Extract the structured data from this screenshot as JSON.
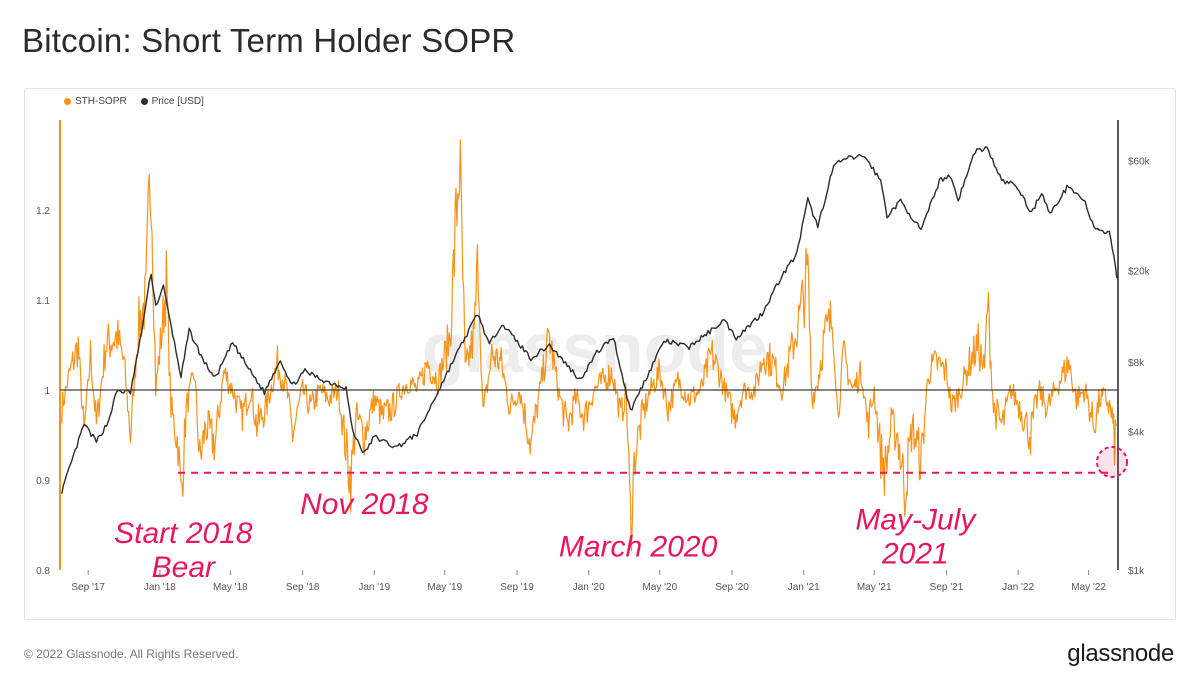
{
  "title": "Bitcoin: Short Term Holder SOPR",
  "footer": "© 2022 Glassnode. All Rights Reserved.",
  "brand": "glassnode",
  "watermark": "glassnode",
  "colors": {
    "sopr": "#f7931a",
    "price": "#2b2b2b",
    "annotation": "#e8175d",
    "baseline": "#3c3c3c"
  },
  "chart_data": {
    "type": "line",
    "title": "Bitcoin: Short Term Holder SOPR",
    "legend": {
      "position": "top-left",
      "entries": [
        "STH-SOPR",
        "Price [USD]"
      ]
    },
    "x_tick_labels": [
      "Sep '17",
      "Jan '18",
      "May '18",
      "Sep '18",
      "Jan '19",
      "May '19",
      "Sep '19",
      "Jan '20",
      "May '20",
      "Sep '20",
      "Jan '21",
      "May '21",
      "Sep '21",
      "Jan '22",
      "May '22"
    ],
    "x_tick_dates": [
      "2017-09-01",
      "2018-01-01",
      "2018-05-01",
      "2018-09-01",
      "2019-01-01",
      "2019-05-01",
      "2019-09-01",
      "2020-01-01",
      "2020-05-01",
      "2020-09-01",
      "2021-01-01",
      "2021-05-01",
      "2021-09-01",
      "2022-01-01",
      "2022-05-01"
    ],
    "x_range": [
      "2017-07-15",
      "2022-06-20"
    ],
    "y_left": {
      "range": [
        0.8,
        1.3
      ],
      "ticks": [
        0.8,
        0.9,
        1,
        1.1,
        1.2
      ],
      "tick_labels": [
        "0.8",
        "0.9",
        "1",
        "1.1",
        "1.2"
      ]
    },
    "y_right": {
      "scale": "log",
      "range": [
        1000,
        90000
      ],
      "ticks": [
        1000,
        4000,
        8000,
        20000,
        60000
      ],
      "tick_labels": [
        "$1k",
        "$4k",
        "$8k",
        "$20k",
        "$60k"
      ]
    },
    "baseline": 1,
    "series": [
      {
        "name": "STH-SOPR",
        "axis": "left",
        "points": [
          [
            "2017-07-18",
            0.98
          ],
          [
            "2017-08-01",
            1.02
          ],
          [
            "2017-08-15",
            1.05
          ],
          [
            "2017-08-25",
            0.95
          ],
          [
            "2017-09-05",
            1.04
          ],
          [
            "2017-09-15",
            0.96
          ],
          [
            "2017-10-01",
            1.05
          ],
          [
            "2017-10-20",
            1.06
          ],
          [
            "2017-11-01",
            1.03
          ],
          [
            "2017-11-12",
            0.95
          ],
          [
            "2017-11-25",
            1.07
          ],
          [
            "2017-12-08",
            1.1
          ],
          [
            "2017-12-17",
            1.26
          ],
          [
            "2017-12-25",
            1.0
          ],
          [
            "2018-01-05",
            1.07
          ],
          [
            "2018-01-12",
            1.12
          ],
          [
            "2018-01-20",
            0.98
          ],
          [
            "2018-02-01",
            0.94
          ],
          [
            "2018-02-06",
            0.88
          ],
          [
            "2018-02-15",
            0.98
          ],
          [
            "2018-03-01",
            1.02
          ],
          [
            "2018-03-10",
            0.92
          ],
          [
            "2018-03-20",
            0.96
          ],
          [
            "2018-04-05",
            0.94
          ],
          [
            "2018-04-20",
            1.02
          ],
          [
            "2018-05-05",
            1.0
          ],
          [
            "2018-05-20",
            0.97
          ],
          [
            "2018-06-05",
            1.0
          ],
          [
            "2018-06-15",
            0.96
          ],
          [
            "2018-07-01",
            0.98
          ],
          [
            "2018-07-20",
            1.03
          ],
          [
            "2018-08-05",
            1.0
          ],
          [
            "2018-08-15",
            0.95
          ],
          [
            "2018-09-01",
            1.0
          ],
          [
            "2018-09-15",
            0.98
          ],
          [
            "2018-10-01",
            1.0
          ],
          [
            "2018-10-15",
            0.99
          ],
          [
            "2018-11-01",
            1.0
          ],
          [
            "2018-11-15",
            0.93
          ],
          [
            "2018-11-22",
            0.9
          ],
          [
            "2018-12-01",
            0.97
          ],
          [
            "2018-12-15",
            0.95
          ],
          [
            "2019-01-01",
            0.99
          ],
          [
            "2019-01-15",
            0.97
          ],
          [
            "2019-02-01",
            0.98
          ],
          [
            "2019-02-15",
            1.0
          ],
          [
            "2019-03-01",
            1.01
          ],
          [
            "2019-03-15",
            1.0
          ],
          [
            "2019-04-02",
            1.03
          ],
          [
            "2019-04-20",
            1.01
          ],
          [
            "2019-05-10",
            1.06
          ],
          [
            "2019-05-26",
            1.26
          ],
          [
            "2019-06-05",
            1.02
          ],
          [
            "2019-06-20",
            1.06
          ],
          [
            "2019-06-27",
            1.15
          ],
          [
            "2019-07-05",
            0.97
          ],
          [
            "2019-07-20",
            1.04
          ],
          [
            "2019-08-05",
            1.03
          ],
          [
            "2019-08-20",
            0.98
          ],
          [
            "2019-09-05",
            1.0
          ],
          [
            "2019-09-25",
            0.94
          ],
          [
            "2019-10-10",
            1.0
          ],
          [
            "2019-10-26",
            1.06
          ],
          [
            "2019-11-10",
            1.0
          ],
          [
            "2019-11-25",
            0.96
          ],
          [
            "2019-12-10",
            0.99
          ],
          [
            "2019-12-25",
            0.97
          ],
          [
            "2020-01-10",
            1.0
          ],
          [
            "2020-01-25",
            1.01
          ],
          [
            "2020-02-10",
            1.02
          ],
          [
            "2020-02-25",
            0.97
          ],
          [
            "2020-03-05",
            1.0
          ],
          [
            "2020-03-12",
            0.85
          ],
          [
            "2020-03-20",
            0.93
          ],
          [
            "2020-04-01",
            0.97
          ],
          [
            "2020-04-15",
            1.0
          ],
          [
            "2020-05-01",
            1.02
          ],
          [
            "2020-05-15",
            0.98
          ],
          [
            "2020-06-01",
            1.01
          ],
          [
            "2020-06-20",
            0.99
          ],
          [
            "2020-07-10",
            1.0
          ],
          [
            "2020-07-28",
            1.04
          ],
          [
            "2020-08-10",
            1.02
          ],
          [
            "2020-08-25",
            0.99
          ],
          [
            "2020-09-05",
            0.97
          ],
          [
            "2020-09-20",
            1.0
          ],
          [
            "2020-10-10",
            1.0
          ],
          [
            "2020-10-25",
            1.04
          ],
          [
            "2020-11-10",
            1.03
          ],
          [
            "2020-11-25",
            1.0
          ],
          [
            "2020-12-10",
            1.04
          ],
          [
            "2020-12-25",
            1.08
          ],
          [
            "2021-01-08",
            1.13
          ],
          [
            "2021-01-15",
            0.99
          ],
          [
            "2021-01-25",
            1.01
          ],
          [
            "2021-02-05",
            1.06
          ],
          [
            "2021-02-20",
            1.08
          ],
          [
            "2021-02-28",
            0.97
          ],
          [
            "2021-03-10",
            1.04
          ],
          [
            "2021-03-25",
            1.0
          ],
          [
            "2021-04-10",
            1.02
          ],
          [
            "2021-04-20",
            0.96
          ],
          [
            "2021-05-01",
            1.0
          ],
          [
            "2021-05-12",
            0.93
          ],
          [
            "2021-05-20",
            0.91
          ],
          [
            "2021-05-30",
            0.96
          ],
          [
            "2021-06-10",
            0.95
          ],
          [
            "2021-06-22",
            0.89
          ],
          [
            "2021-07-05",
            0.96
          ],
          [
            "2021-07-20",
            0.92
          ],
          [
            "2021-08-01",
            1.02
          ],
          [
            "2021-08-15",
            1.03
          ],
          [
            "2021-09-01",
            1.02
          ],
          [
            "2021-09-10",
            0.98
          ],
          [
            "2021-09-25",
            1.0
          ],
          [
            "2021-10-10",
            1.03
          ],
          [
            "2021-10-25",
            1.05
          ],
          [
            "2021-11-05",
            1.02
          ],
          [
            "2021-11-10",
            1.1
          ],
          [
            "2021-11-20",
            0.98
          ],
          [
            "2021-12-05",
            0.96
          ],
          [
            "2021-12-20",
            1.0
          ],
          [
            "2022-01-05",
            0.98
          ],
          [
            "2022-01-22",
            0.95
          ],
          [
            "2022-02-05",
            1.0
          ],
          [
            "2022-02-20",
            0.98
          ],
          [
            "2022-03-05",
            1.0
          ],
          [
            "2022-03-28",
            1.03
          ],
          [
            "2022-04-10",
            0.99
          ],
          [
            "2022-04-25",
            1.0
          ],
          [
            "2022-05-10",
            0.96
          ],
          [
            "2022-05-20",
            0.99
          ],
          [
            "2022-06-01",
            0.99
          ],
          [
            "2022-06-10",
            0.97
          ],
          [
            "2022-06-14",
            0.94
          ],
          [
            "2022-06-17",
            0.96
          ]
        ]
      },
      {
        "name": "Price [USD]",
        "axis": "right",
        "points": [
          [
            "2017-07-18",
            2200
          ],
          [
            "2017-08-01",
            2800
          ],
          [
            "2017-08-25",
            4300
          ],
          [
            "2017-09-15",
            3600
          ],
          [
            "2017-10-05",
            4400
          ],
          [
            "2017-10-20",
            6000
          ],
          [
            "2017-11-12",
            5900
          ],
          [
            "2017-11-28",
            9800
          ],
          [
            "2017-12-17",
            19500
          ],
          [
            "2017-12-25",
            14000
          ],
          [
            "2018-01-07",
            17000
          ],
          [
            "2018-01-20",
            11500
          ],
          [
            "2018-02-06",
            6900
          ],
          [
            "2018-02-20",
            11000
          ],
          [
            "2018-03-15",
            8200
          ],
          [
            "2018-04-05",
            6800
          ],
          [
            "2018-05-05",
            9700
          ],
          [
            "2018-06-01",
            7500
          ],
          [
            "2018-06-28",
            5900
          ],
          [
            "2018-07-25",
            8200
          ],
          [
            "2018-08-14",
            6300
          ],
          [
            "2018-09-05",
            7300
          ],
          [
            "2018-10-10",
            6600
          ],
          [
            "2018-11-14",
            6200
          ],
          [
            "2018-11-25",
            4000
          ],
          [
            "2018-12-15",
            3200
          ],
          [
            "2019-01-01",
            3800
          ],
          [
            "2019-02-07",
            3400
          ],
          [
            "2019-03-15",
            3900
          ],
          [
            "2019-04-05",
            5000
          ],
          [
            "2019-05-14",
            8000
          ],
          [
            "2019-06-26",
            13000
          ],
          [
            "2019-07-16",
            9500
          ],
          [
            "2019-08-06",
            11800
          ],
          [
            "2019-09-25",
            8300
          ],
          [
            "2019-10-26",
            9500
          ],
          [
            "2019-12-17",
            6700
          ],
          [
            "2020-01-15",
            8800
          ],
          [
            "2020-02-12",
            10300
          ],
          [
            "2020-03-12",
            4900
          ],
          [
            "2020-04-10",
            7000
          ],
          [
            "2020-05-08",
            9900
          ],
          [
            "2020-06-20",
            9300
          ],
          [
            "2020-07-28",
            11000
          ],
          [
            "2020-08-18",
            12200
          ],
          [
            "2020-09-08",
            10200
          ],
          [
            "2020-10-22",
            13000
          ],
          [
            "2020-11-25",
            19000
          ],
          [
            "2020-12-20",
            23500
          ],
          [
            "2021-01-08",
            40500
          ],
          [
            "2021-01-25",
            31000
          ],
          [
            "2021-02-21",
            57000
          ],
          [
            "2021-03-13",
            61000
          ],
          [
            "2021-04-14",
            63000
          ],
          [
            "2021-05-12",
            49000
          ],
          [
            "2021-05-23",
            34500
          ],
          [
            "2021-06-15",
            40000
          ],
          [
            "2021-07-20",
            29800
          ],
          [
            "2021-08-20",
            49000
          ],
          [
            "2021-09-07",
            52000
          ],
          [
            "2021-09-21",
            40500
          ],
          [
            "2021-10-20",
            66000
          ],
          [
            "2021-11-09",
            68000
          ],
          [
            "2021-12-04",
            49000
          ],
          [
            "2021-12-28",
            47000
          ],
          [
            "2022-01-24",
            35500
          ],
          [
            "2022-02-10",
            44000
          ],
          [
            "2022-02-24",
            35000
          ],
          [
            "2022-03-28",
            47000
          ],
          [
            "2022-04-25",
            39500
          ],
          [
            "2022-05-10",
            30500
          ],
          [
            "2022-05-28",
            29000
          ],
          [
            "2022-06-05",
            30000
          ],
          [
            "2022-06-13",
            22500
          ],
          [
            "2022-06-18",
            18500
          ]
        ]
      }
    ],
    "annotations": [
      {
        "text": "Start 2018\nBear",
        "date": "2018-02-10",
        "value": 0.83
      },
      {
        "text": "Nov 2018",
        "date": "2018-12-15",
        "value": 0.862
      },
      {
        "text": "March 2020",
        "date": "2020-03-25",
        "value": 0.815
      },
      {
        "text": "May-July\n2021",
        "date": "2021-07-10",
        "value": 0.845
      }
    ],
    "threshold_line": {
      "value": 0.908,
      "from": "2018-02-01",
      "to": "2022-06-20",
      "style": "dashed"
    },
    "highlight_circle": {
      "date": "2022-06-20",
      "value": 0.92
    }
  }
}
